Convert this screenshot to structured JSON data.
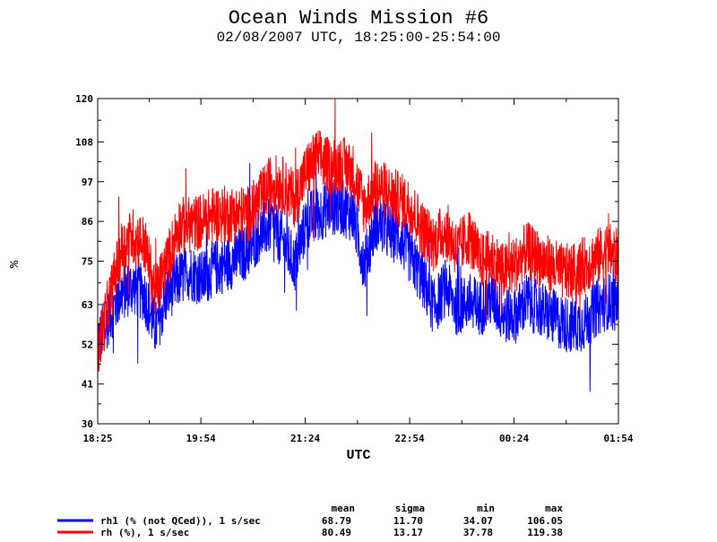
{
  "chart_data": {
    "type": "line",
    "title": "Ocean Winds Mission #6",
    "subtitle": "02/08/2007  UTC, 18:25:00-25:54:00",
    "xlabel": "UTC",
    "ylabel": "%",
    "xlim_minutes": [
      1105,
      1554
    ],
    "ylim": [
      30,
      120
    ],
    "x_ticks": [
      {
        "minutes": 1105,
        "label": "18:25"
      },
      {
        "minutes": 1194,
        "label": "19:54"
      },
      {
        "minutes": 1284,
        "label": "21:24"
      },
      {
        "minutes": 1374,
        "label": "22:54"
      },
      {
        "minutes": 1464,
        "label": "00:24"
      },
      {
        "minutes": 1554,
        "label": "01:54"
      }
    ],
    "y_ticks": [
      {
        "value": 30,
        "label": "30"
      },
      {
        "value": 41,
        "label": "41"
      },
      {
        "value": 52,
        "label": "52"
      },
      {
        "value": 63,
        "label": "63"
      },
      {
        "value": 75,
        "label": "75"
      },
      {
        "value": 86,
        "label": "86"
      },
      {
        "value": 97,
        "label": "97"
      },
      {
        "value": 108,
        "label": "108"
      },
      {
        "value": 120,
        "label": "120"
      }
    ],
    "grid": false,
    "stats_headers": [
      "mean",
      "sigma",
      "min",
      "max"
    ],
    "series": [
      {
        "name": "rh1 (% (not QCed)), 1 s/sec",
        "color": "#0000ff",
        "stats": [
          "68.79",
          "11.70",
          "34.07",
          "106.05"
        ],
        "x_minutes": [
          1105,
          1115,
          1125,
          1135,
          1145,
          1155,
          1165,
          1175,
          1185,
          1195,
          1205,
          1215,
          1225,
          1235,
          1245,
          1255,
          1265,
          1275,
          1285,
          1295,
          1305,
          1315,
          1325,
          1335,
          1345,
          1355,
          1365,
          1375,
          1385,
          1395,
          1405,
          1415,
          1425,
          1435,
          1445,
          1455,
          1465,
          1475,
          1485,
          1495,
          1505,
          1515,
          1525,
          1535,
          1545,
          1554
        ],
        "values": [
          52,
          60,
          66,
          68,
          66,
          56,
          66,
          70,
          72,
          70,
          73,
          74,
          76,
          78,
          83,
          85,
          80,
          74,
          86,
          88,
          90,
          90,
          88,
          74,
          86,
          83,
          82,
          76,
          70,
          62,
          68,
          62,
          64,
          62,
          65,
          60,
          60,
          64,
          62,
          60,
          58,
          57,
          58,
          62,
          64,
          63
        ]
      },
      {
        "name": "rh (%), 1 s/sec",
        "color": "#ff0000",
        "stats": [
          "80.49",
          "13.17",
          "37.78",
          "119.38"
        ],
        "x_minutes": [
          1105,
          1115,
          1125,
          1135,
          1145,
          1155,
          1165,
          1175,
          1185,
          1195,
          1205,
          1215,
          1225,
          1235,
          1245,
          1255,
          1265,
          1275,
          1285,
          1295,
          1305,
          1315,
          1325,
          1335,
          1345,
          1355,
          1365,
          1375,
          1385,
          1395,
          1405,
          1415,
          1425,
          1435,
          1445,
          1455,
          1465,
          1475,
          1485,
          1495,
          1505,
          1515,
          1525,
          1535,
          1545,
          1554
        ],
        "values": [
          50,
          64,
          78,
          82,
          80,
          66,
          75,
          85,
          85,
          86,
          88,
          88,
          88,
          88,
          92,
          97,
          96,
          92,
          100,
          104,
          101,
          102,
          100,
          90,
          96,
          94,
          92,
          90,
          84,
          80,
          84,
          78,
          82,
          75,
          76,
          72,
          74,
          78,
          76,
          74,
          72,
          72,
          74,
          76,
          78,
          76
        ]
      }
    ]
  }
}
